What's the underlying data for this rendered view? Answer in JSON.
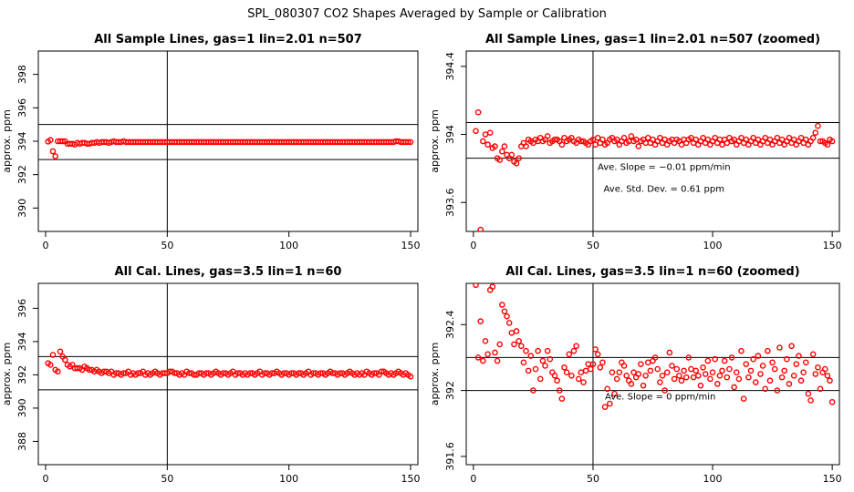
{
  "figure": {
    "title": "SPL_080307  CO2 Shapes Averaged by Sample or Calibration"
  },
  "chart_data": [
    {
      "id": "sample_full",
      "type": "scatter",
      "title": "All Sample Lines, gas=1 lin=2.01 n=507",
      "xlabel": "",
      "ylabel": "approx. ppm",
      "xlim": [
        -3,
        153
      ],
      "ylim": [
        388.6,
        399.4
      ],
      "xticks": [
        0,
        50,
        100,
        150
      ],
      "yticks": [
        390,
        392,
        394,
        396,
        398
      ],
      "hlines": [
        395.0,
        392.9
      ],
      "vline": 50,
      "annotations": [],
      "x_start": 1,
      "y": [
        393.98,
        394.07,
        393.4,
        393.1,
        394.0,
        394.0,
        394.0,
        394.0,
        393.85,
        393.85,
        393.85,
        393.8,
        393.9,
        393.85,
        393.9,
        393.9,
        393.85,
        393.85,
        393.9,
        393.9,
        393.95,
        393.9,
        393.95,
        393.95,
        393.95,
        393.9,
        393.95,
        394.0,
        393.95,
        393.95,
        393.95,
        394.0,
        393.95,
        393.95,
        393.95,
        393.95,
        393.95,
        393.95,
        393.95,
        393.95,
        393.95,
        393.95,
        393.95,
        393.95,
        393.95,
        393.95,
        393.95,
        393.95,
        393.95,
        393.95,
        393.95,
        393.95,
        393.95,
        393.95,
        393.95,
        393.95,
        393.95,
        393.95,
        393.95,
        393.95,
        393.95,
        393.95,
        393.95,
        393.95,
        393.95,
        393.95,
        393.95,
        393.95,
        393.95,
        393.95,
        393.95,
        393.95,
        393.95,
        393.95,
        393.95,
        393.95,
        393.95,
        393.95,
        393.95,
        393.95,
        393.95,
        393.95,
        393.95,
        393.95,
        393.95,
        393.95,
        393.95,
        393.95,
        393.95,
        393.95,
        393.95,
        393.95,
        393.95,
        393.95,
        393.95,
        393.95,
        393.95,
        393.95,
        393.95,
        393.95,
        393.95,
        393.95,
        393.95,
        393.95,
        393.95,
        393.95,
        393.95,
        393.95,
        393.95,
        393.95,
        393.95,
        393.95,
        393.95,
        393.95,
        393.95,
        393.95,
        393.95,
        393.95,
        393.95,
        393.95,
        393.95,
        393.95,
        393.95,
        393.95,
        393.95,
        393.95,
        393.95,
        393.95,
        393.95,
        393.95,
        393.95,
        393.95,
        393.95,
        393.95,
        393.95,
        393.95,
        393.95,
        393.95,
        393.95,
        393.95,
        393.95,
        393.95,
        393.95,
        394.0,
        394.0,
        393.95,
        393.95,
        393.95,
        393.95,
        393.95
      ]
    },
    {
      "id": "sample_zoom",
      "type": "scatter",
      "title": "All Sample Lines, gas=1 lin=2.01 n=507 (zoomed)",
      "xlabel": "",
      "ylabel": "approx. ppm",
      "xlim": [
        -3,
        153
      ],
      "ylim": [
        393.43,
        394.49
      ],
      "xticks": [
        0,
        50,
        100,
        150
      ],
      "yticks": [
        393.6,
        394.0,
        394.4
      ],
      "hlines": [
        394.07,
        393.86
      ],
      "vline": 50,
      "annotations": [
        "Ave. Slope =  −0.01  ppm/min",
        "Ave. Std. Dev. =  0.61  ppm"
      ],
      "x_start": 1,
      "y": [
        394.02,
        394.13,
        393.44,
        393.96,
        394.0,
        393.94,
        394.01,
        393.92,
        393.93,
        393.86,
        393.85,
        393.9,
        393.93,
        393.88,
        393.86,
        393.88,
        393.84,
        393.83,
        393.86,
        393.93,
        393.95,
        393.93,
        393.97,
        393.96,
        393.95,
        393.97,
        393.96,
        393.98,
        393.96,
        393.97,
        393.99,
        393.95,
        393.96,
        393.97,
        393.97,
        393.96,
        393.94,
        393.98,
        393.96,
        393.97,
        393.98,
        393.96,
        393.95,
        393.97,
        393.96,
        393.96,
        393.95,
        393.94,
        393.96,
        393.97,
        393.94,
        393.98,
        393.95,
        393.97,
        393.94,
        393.95,
        393.97,
        393.98,
        393.96,
        393.97,
        393.94,
        393.96,
        393.98,
        393.95,
        393.96,
        393.99,
        393.96,
        393.97,
        393.93,
        393.96,
        393.97,
        393.95,
        393.98,
        393.95,
        393.97,
        393.94,
        393.96,
        393.98,
        393.95,
        393.97,
        393.94,
        393.96,
        393.97,
        393.95,
        393.97,
        393.96,
        393.94,
        393.97,
        393.95,
        393.97,
        393.98,
        393.95,
        393.97,
        393.94,
        393.96,
        393.98,
        393.95,
        393.97,
        393.94,
        393.96,
        393.98,
        393.95,
        393.97,
        393.94,
        393.97,
        393.95,
        393.98,
        393.96,
        393.97,
        393.94,
        393.96,
        393.98,
        393.95,
        393.97,
        393.94,
        393.96,
        393.98,
        393.95,
        393.97,
        393.94,
        393.96,
        393.98,
        393.95,
        393.97,
        393.94,
        393.96,
        393.98,
        393.95,
        393.97,
        393.94,
        393.96,
        393.98,
        393.95,
        393.97,
        393.94,
        393.96,
        393.98,
        393.95,
        393.97,
        393.94,
        393.96,
        393.98,
        394.01,
        394.05,
        393.96,
        393.96,
        393.95,
        393.94,
        393.97,
        393.96
      ]
    },
    {
      "id": "cal_full",
      "type": "scatter",
      "title": "All Cal. Lines, gas=3.5 lin=1 n=60",
      "xlabel": "",
      "ylabel": "approx. ppm",
      "xlim": [
        -3,
        153
      ],
      "ylim": [
        386.6,
        397.5
      ],
      "xticks": [
        0,
        50,
        100,
        150
      ],
      "yticks": [
        388,
        390,
        392,
        394,
        396
      ],
      "hlines": [
        393.1,
        391.1
      ],
      "vline": 50,
      "annotations": [],
      "x_start": 1,
      "y": [
        392.7,
        392.6,
        393.2,
        392.3,
        392.2,
        393.4,
        393.1,
        392.9,
        392.6,
        392.5,
        392.6,
        392.4,
        392.4,
        392.4,
        392.3,
        392.5,
        392.4,
        392.3,
        392.3,
        392.2,
        392.3,
        392.2,
        392.1,
        392.2,
        392.2,
        392.1,
        392.2,
        392.0,
        392.1,
        392.1,
        392.0,
        392.1,
        392.1,
        392.2,
        392.0,
        392.1,
        392.0,
        392.1,
        392.1,
        392.2,
        392.0,
        392.1,
        392.0,
        392.1,
        392.2,
        392.1,
        392.0,
        392.1,
        392.1,
        392.1,
        392.2,
        392.2,
        392.1,
        392.1,
        392.0,
        392.1,
        392.0,
        392.2,
        392.1,
        392.1,
        392.0,
        392.0,
        392.1,
        392.1,
        392.0,
        392.1,
        392.1,
        392.0,
        392.1,
        392.2,
        392.1,
        392.0,
        392.1,
        392.1,
        392.0,
        392.1,
        392.2,
        392.0,
        392.1,
        392.1,
        392.0,
        392.1,
        392.0,
        392.1,
        392.1,
        392.0,
        392.1,
        392.2,
        392.0,
        392.1,
        392.1,
        392.0,
        392.1,
        392.1,
        392.2,
        392.1,
        392.0,
        392.1,
        392.1,
        392.0,
        392.1,
        392.1,
        392.0,
        392.1,
        392.1,
        392.0,
        392.1,
        392.2,
        392.0,
        392.1,
        392.1,
        392.0,
        392.1,
        392.1,
        392.0,
        392.1,
        392.2,
        392.1,
        392.1,
        392.0,
        392.1,
        392.1,
        392.0,
        392.1,
        392.2,
        392.1,
        392.0,
        392.1,
        392.0,
        392.1,
        392.0,
        392.2,
        392.1,
        392.0,
        392.1,
        392.1,
        392.0,
        392.2,
        392.2,
        392.1,
        392.0,
        392.1,
        392.0,
        392.1,
        392.2,
        392.1,
        392.0,
        392.1,
        392.0,
        391.9
      ]
    },
    {
      "id": "cal_zoom",
      "type": "scatter",
      "title": "All Cal. Lines, gas=3.5 lin=1 n=60 (zoomed)",
      "xlabel": "",
      "ylabel": "approx. ppm",
      "xlim": [
        -3,
        153
      ],
      "ylim": [
        391.55,
        392.65
      ],
      "xticks": [
        0,
        50,
        100,
        150
      ],
      "yticks": [
        391.6,
        392.0,
        392.4
      ],
      "hlines": [
        392.2,
        392.0
      ],
      "vline": 50,
      "annotations": [
        "Ave. Slope =  0  ppm/min"
      ],
      "x_start": 1,
      "y": [
        392.64,
        392.2,
        392.42,
        392.18,
        392.3,
        392.22,
        392.61,
        392.63,
        392.23,
        392.18,
        392.28,
        392.52,
        392.48,
        392.45,
        392.41,
        392.35,
        392.28,
        392.36,
        392.3,
        392.27,
        392.17,
        392.24,
        392.12,
        392.21,
        392.0,
        392.13,
        392.24,
        392.07,
        392.18,
        392.15,
        392.24,
        392.19,
        392.11,
        392.09,
        392.06,
        392.0,
        391.95,
        392.14,
        392.11,
        392.22,
        392.09,
        392.24,
        392.27,
        392.07,
        392.11,
        392.05,
        392.12,
        392.16,
        392.13,
        392.16,
        392.25,
        392.22,
        392.14,
        392.17,
        391.9,
        392.01,
        391.92,
        392.11,
        391.98,
        392.07,
        392.11,
        392.17,
        392.15,
        392.09,
        392.06,
        392.04,
        392.11,
        392.08,
        392.1,
        392.16,
        392.03,
        392.09,
        392.17,
        392.12,
        392.18,
        392.2,
        392.13,
        392.05,
        392.09,
        392.0,
        392.11,
        392.23,
        392.15,
        392.07,
        392.13,
        392.09,
        392.06,
        392.12,
        392.08,
        392.2,
        392.13,
        392.08,
        392.12,
        392.09,
        392.03,
        392.14,
        392.1,
        392.18,
        392.07,
        392.11,
        392.19,
        392.04,
        392.09,
        392.12,
        392.18,
        392.08,
        392.13,
        392.2,
        392.02,
        392.11,
        392.07,
        392.24,
        391.95,
        392.16,
        392.08,
        392.12,
        392.19,
        392.05,
        392.21,
        392.1,
        392.15,
        392.01,
        392.24,
        392.06,
        392.17,
        392.13,
        392.0,
        392.26,
        392.08,
        392.12,
        392.19,
        392.04,
        392.27,
        392.09,
        392.16,
        392.21,
        392.06,
        392.11,
        392.17,
        391.98,
        391.94,
        392.22,
        392.1,
        392.14,
        392.01,
        392.11,
        392.13,
        392.09,
        392.06,
        391.93
      ]
    }
  ]
}
